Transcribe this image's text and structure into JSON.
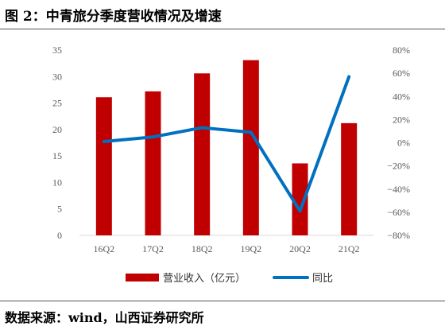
{
  "figure": {
    "title": "图 2：中青旅分季度营收情况及增速",
    "source": "数据来源：wind，山西证券研究所"
  },
  "chart_data": {
    "type": "bar+line",
    "categories": [
      "16Q2",
      "17Q2",
      "18Q2",
      "19Q2",
      "20Q2",
      "21Q2"
    ],
    "series": [
      {
        "name": "营业收入（亿元）",
        "type": "bar",
        "axis": "left",
        "color": "#C00000",
        "values": [
          26.1,
          27.2,
          30.6,
          33.1,
          13.6,
          21.2
        ]
      },
      {
        "name": "同比",
        "type": "line",
        "axis": "right",
        "color": "#0070C0",
        "values": [
          0.01,
          0.05,
          0.13,
          0.09,
          -0.59,
          0.57
        ]
      }
    ],
    "left_axis": {
      "ylim": [
        0,
        35
      ],
      "ticks": [
        "0",
        "5",
        "10",
        "15",
        "20",
        "25",
        "30",
        "35"
      ]
    },
    "right_axis": {
      "ylim": [
        -0.8,
        0.8
      ],
      "ticks": [
        "−80%",
        "−60%",
        "−40%",
        "−20%",
        "0%",
        "20%",
        "40%",
        "60%",
        "80%"
      ]
    },
    "grid": false,
    "legend": "bottom-center"
  }
}
